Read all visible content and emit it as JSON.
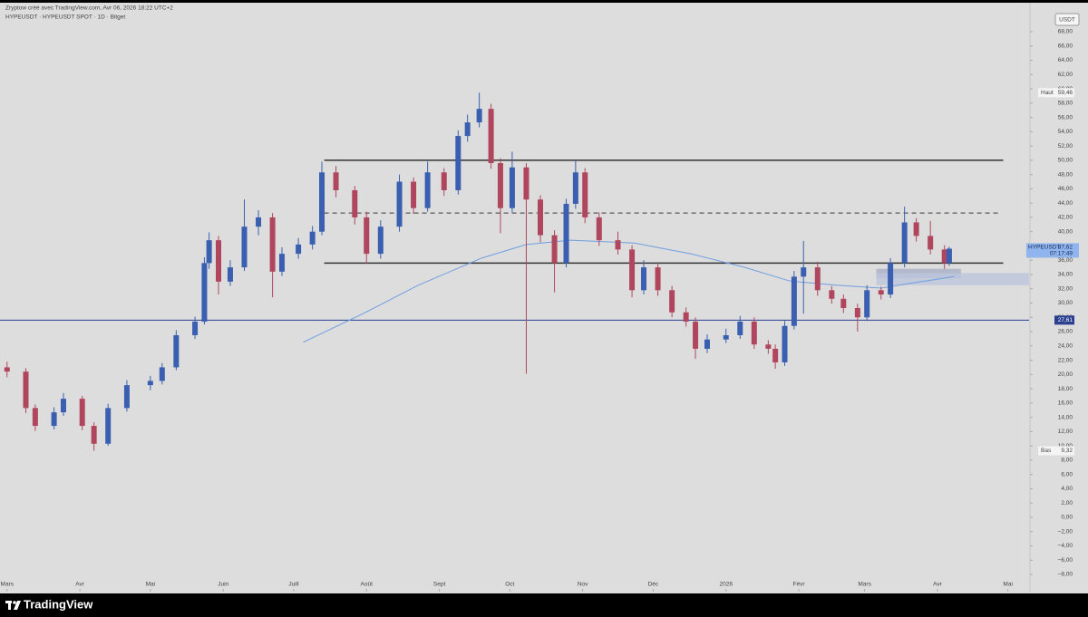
{
  "header": {
    "credit": "Zryptow créé avec TradingView.com, Avr 06, 2026 18:22 UTC+2",
    "brand": "TradingView"
  },
  "chart_data": {
    "type": "candlestick",
    "title": "HYPEUSDT · HYPEUSDT SPOT · 1D · Bitget",
    "currency": "USDT",
    "up_color": "#3a5fb0",
    "down_color": "#b0465e",
    "x": [
      0,
      8,
      12,
      20,
      24,
      32,
      37,
      43,
      51,
      61,
      66,
      72,
      80,
      84,
      86,
      90,
      95,
      101,
      107,
      113,
      117,
      124,
      130,
      134,
      140,
      148,
      153,
      159,
      167,
      173,
      179,
      186,
      192,
      196,
      201,
      206,
      210,
      215,
      221,
      227,
      233,
      238,
      242,
      246,
      252,
      260,
      266,
      271,
      277,
      283,
      289,
      293,
      298,
      306,
      312,
      318,
      324,
      327,
      331,
      335,
      339,
      345,
      351,
      356,
      362,
      366,
      372,
      376,
      382,
      387,
      393,
      399,
      401
    ],
    "ohlc": [
      [
        21,
        21.8,
        19.6,
        20.4
      ],
      [
        20.4,
        20.9,
        14.6,
        15.3
      ],
      [
        15.3,
        15.8,
        12.1,
        12.8
      ],
      [
        12.8,
        15.4,
        12.3,
        14.7
      ],
      [
        14.7,
        17.4,
        14.2,
        16.6
      ],
      [
        16.6,
        17,
        12.2,
        12.8
      ],
      [
        12.8,
        13.3,
        9.32,
        10.3
      ],
      [
        10.3,
        15.9,
        10,
        15.3
      ],
      [
        15.3,
        19.2,
        14.8,
        18.5
      ],
      [
        18.5,
        19.8,
        17.8,
        19.1
      ],
      [
        19.1,
        21.6,
        18.6,
        21
      ],
      [
        21,
        26.2,
        20.6,
        25.5
      ],
      [
        25.5,
        28.1,
        25,
        27.4
      ],
      [
        27.4,
        36.4,
        27,
        35.6
      ],
      [
        35.6,
        39.9,
        34.8,
        38.8
      ],
      [
        38.8,
        39.4,
        31.2,
        33
      ],
      [
        33,
        36,
        32.4,
        35
      ],
      [
        35,
        44.5,
        34.5,
        40.7
      ],
      [
        40.7,
        43,
        39.5,
        42
      ],
      [
        42,
        42.6,
        30.8,
        34.4
      ],
      [
        34.4,
        37.8,
        33.8,
        36.9
      ],
      [
        36.9,
        39.1,
        36.2,
        38.2
      ],
      [
        38.2,
        40.8,
        37.5,
        40
      ],
      [
        40,
        49.8,
        39.5,
        48.3
      ],
      [
        48.3,
        49.2,
        44.8,
        45.8
      ],
      [
        45.8,
        46.4,
        41,
        42
      ],
      [
        42,
        42.8,
        35.5,
        36.9
      ],
      [
        36.9,
        41.6,
        36.2,
        40.7
      ],
      [
        40.7,
        48,
        40,
        47
      ],
      [
        47,
        47.6,
        42.5,
        43.3
      ],
      [
        43.3,
        49.8,
        42.8,
        48.3
      ],
      [
        48.3,
        48.9,
        45,
        45.8
      ],
      [
        45.8,
        54.2,
        45.2,
        53.4
      ],
      [
        53.4,
        56.4,
        52.6,
        55.3
      ],
      [
        55.3,
        59.46,
        54.6,
        57.2
      ],
      [
        57.2,
        57.9,
        48.8,
        49.6
      ],
      [
        49.6,
        50.3,
        39.8,
        43.3
      ],
      [
        43.3,
        51.2,
        42.7,
        49
      ],
      [
        49,
        49.6,
        20.1,
        44.5
      ],
      [
        44.5,
        45.1,
        38.5,
        39.5
      ],
      [
        39.5,
        40.2,
        31.5,
        35.6
      ],
      [
        35.6,
        44.6,
        35,
        43.9
      ],
      [
        43.9,
        50,
        43.2,
        48.3
      ],
      [
        48.3,
        48.9,
        41.2,
        42
      ],
      [
        42,
        42.7,
        38,
        38.8
      ],
      [
        38.8,
        40,
        36.8,
        37.5
      ],
      [
        37.5,
        38.1,
        30.8,
        31.8
      ],
      [
        31.8,
        36,
        31.2,
        35
      ],
      [
        35,
        35.6,
        31,
        31.8
      ],
      [
        31.8,
        32.4,
        28,
        28.7
      ],
      [
        28.7,
        29.4,
        26.7,
        27.4
      ],
      [
        27.4,
        28,
        22.2,
        23.6
      ],
      [
        23.6,
        25.6,
        23,
        24.9
      ],
      [
        24.9,
        26.4,
        24.4,
        25.5
      ],
      [
        25.5,
        28.2,
        25,
        27.4
      ],
      [
        27.4,
        28,
        23.6,
        24.2
      ],
      [
        24.2,
        24.8,
        22.9,
        23.6
      ],
      [
        23.6,
        24.2,
        20.8,
        21.7
      ],
      [
        21.7,
        27.5,
        21.2,
        26.8
      ],
      [
        26.8,
        34.5,
        26.3,
        33.7
      ],
      [
        33.7,
        38.7,
        28.5,
        35
      ],
      [
        35,
        35.8,
        31,
        31.8
      ],
      [
        31.8,
        32.4,
        29.9,
        30.6
      ],
      [
        30.6,
        31.2,
        28.6,
        29.3
      ],
      [
        29.3,
        29.9,
        26,
        28
      ],
      [
        28,
        32.5,
        27.5,
        31.8
      ],
      [
        31.8,
        32.3,
        30.5,
        31.2
      ],
      [
        31.2,
        36.3,
        30.7,
        35.6
      ],
      [
        35.6,
        43.5,
        35,
        41.3
      ],
      [
        41.3,
        41.9,
        38.6,
        39.4
      ],
      [
        39.4,
        41.5,
        36.8,
        37.5
      ],
      [
        37.5,
        38.1,
        34.8,
        35.6
      ],
      [
        35.6,
        37.9,
        35.2,
        37.62
      ]
    ],
    "moving_average": {
      "color": "#6f9ee0",
      "x": [
        126,
        152,
        175,
        202,
        221,
        240,
        267,
        291,
        314,
        333,
        353,
        372,
        387,
        403
      ],
      "values": [
        24.5,
        28.6,
        32.5,
        36.3,
        38.2,
        38.8,
        38.4,
        36.9,
        35,
        33.1,
        32.5,
        32.1,
        32.9,
        33.7
      ]
    },
    "levels": [
      {
        "value": 50,
        "x0": 135,
        "x1": 424,
        "style": "solid",
        "color": "#333333"
      },
      {
        "value": 42.6,
        "x0": 135,
        "x1": 422,
        "style": "dashed",
        "color": "#777777"
      },
      {
        "value": 35.6,
        "x0": 135,
        "x1": 424,
        "style": "solid",
        "color": "#333333"
      }
    ],
    "zones": [
      {
        "x0": 370,
        "x1": 406,
        "y0": 33.5,
        "y1": 34.8,
        "color": "#a9b0c6"
      },
      {
        "x0": 370,
        "x1": 435,
        "y0": 32.5,
        "y1": 34.2,
        "color": "#bcc6dc"
      }
    ],
    "hline": {
      "value": 27.61,
      "label": "27,61",
      "color": "#2a3f8f"
    },
    "markers": [
      {
        "name": "Haut",
        "value": 59.46,
        "label": "59,46"
      },
      {
        "name": "Bas",
        "value": 9.32,
        "label": "9,32"
      }
    ],
    "last": {
      "name": "HYPEUSDT",
      "value": 37.62,
      "label": "37,62",
      "countdown": "07:17:49",
      "color": "#8fb4ee"
    },
    "xlim": [
      -3,
      435
    ],
    "ylim": [
      -8,
      68
    ],
    "xticks": [
      {
        "value": 0,
        "label": "Mars"
      },
      {
        "value": 31,
        "label": "Avr"
      },
      {
        "value": 61,
        "label": "Mai"
      },
      {
        "value": 92,
        "label": "Juin"
      },
      {
        "value": 122,
        "label": "Juill"
      },
      {
        "value": 153,
        "label": "Août"
      },
      {
        "value": 184,
        "label": "Sept"
      },
      {
        "value": 214,
        "label": "Oct"
      },
      {
        "value": 245,
        "label": "Nov"
      },
      {
        "value": 275,
        "label": "Déc"
      },
      {
        "value": 306,
        "label": "2026"
      },
      {
        "value": 337,
        "label": "Févr"
      },
      {
        "value": 365,
        "label": "Mars"
      },
      {
        "value": 396,
        "label": "Avr"
      },
      {
        "value": 426,
        "label": "Mai"
      }
    ],
    "yticks": [
      {
        "value": 68,
        "label": "68,00"
      },
      {
        "value": 66,
        "label": "66,00"
      },
      {
        "value": 64,
        "label": "64,00"
      },
      {
        "value": 62,
        "label": "62,00"
      },
      {
        "value": 60,
        "label": "60,00"
      },
      {
        "value": 58,
        "label": "58,00"
      },
      {
        "value": 56,
        "label": "56,00"
      },
      {
        "value": 54,
        "label": "54,00"
      },
      {
        "value": 52,
        "label": "52,00"
      },
      {
        "value": 50,
        "label": "50,00"
      },
      {
        "value": 48,
        "label": "48,00"
      },
      {
        "value": 46,
        "label": "46,00"
      },
      {
        "value": 44,
        "label": "44,00"
      },
      {
        "value": 42,
        "label": "42,00"
      },
      {
        "value": 40,
        "label": "40,00"
      },
      {
        "value": 38,
        "label": "38,00"
      },
      {
        "value": 36,
        "label": "36,00"
      },
      {
        "value": 34,
        "label": "34,00"
      },
      {
        "value": 32,
        "label": "32,00"
      },
      {
        "value": 30,
        "label": "30,00"
      },
      {
        "value": 28,
        "label": "28,00"
      },
      {
        "value": 26,
        "label": "26,00"
      },
      {
        "value": 24,
        "label": "24,00"
      },
      {
        "value": 22,
        "label": "22,00"
      },
      {
        "value": 20,
        "label": "20,00"
      },
      {
        "value": 18,
        "label": "18,00"
      },
      {
        "value": 16,
        "label": "16,00"
      },
      {
        "value": 14,
        "label": "14,00"
      },
      {
        "value": 12,
        "label": "12,00"
      },
      {
        "value": 10,
        "label": "10,00"
      },
      {
        "value": 8,
        "label": "8,00"
      },
      {
        "value": 6,
        "label": "6,00"
      },
      {
        "value": 4,
        "label": "4,00"
      },
      {
        "value": 2,
        "label": "2,00"
      },
      {
        "value": 0,
        "label": "0,00"
      },
      {
        "value": -2,
        "label": "−2,00"
      },
      {
        "value": -4,
        "label": "−4,00"
      },
      {
        "value": -6,
        "label": "−6,00"
      },
      {
        "value": -8,
        "label": "−8,00"
      }
    ]
  }
}
